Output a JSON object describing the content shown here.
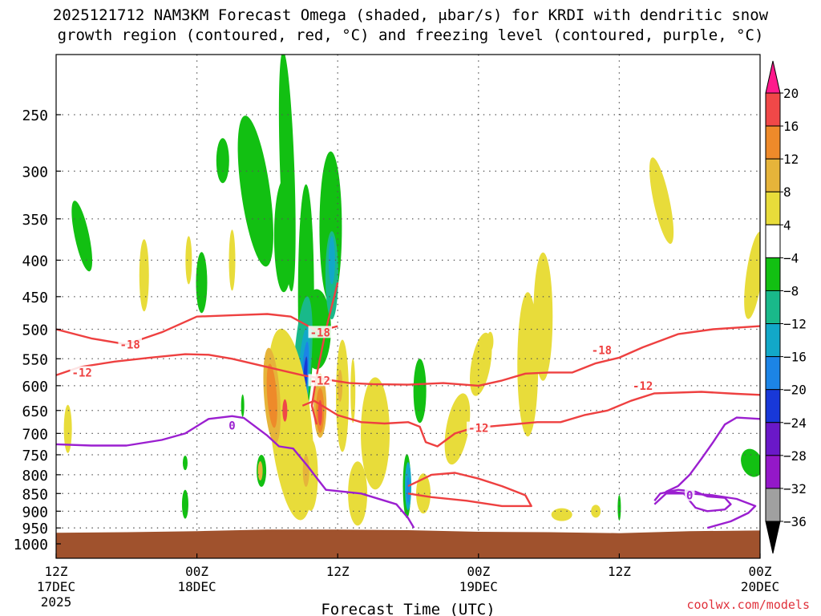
{
  "title": {
    "line1": "2025121712 NAM3KM Forecast Omega (shaded, μbar/s) for KRDI with dendritic snow",
    "line2": "growth region (contoured, red, °C) and freezing level (contoured, purple, °C)"
  },
  "credit": "coolwx.com/models",
  "chart_data": {
    "type": "time-height cross section",
    "title": "2025121712 NAM3KM Forecast Omega (shaded, μbar/s) for KRDI with dendritic snow growth region (contoured, red, °C) and freezing level (contoured, purple, °C)",
    "xlabel": "Forecast Time (UTC)",
    "ylabel": "",
    "x_range_hours": [
      0,
      60
    ],
    "x_ticks": [
      {
        "hour": 0,
        "line1": "12Z",
        "line2": "17DEC",
        "line3": "2025"
      },
      {
        "hour": 12,
        "line1": "00Z",
        "line2": "18DEC",
        "line3": ""
      },
      {
        "hour": 24,
        "line1": "12Z",
        "line2": "",
        "line3": ""
      },
      {
        "hour": 36,
        "line1": "00Z",
        "line2": "19DEC",
        "line3": ""
      },
      {
        "hour": 48,
        "line1": "12Z",
        "line2": "",
        "line3": ""
      },
      {
        "hour": 60,
        "line1": "00Z",
        "line2": "20DEC",
        "line3": ""
      }
    ],
    "y_pressure_levels": [
      250,
      300,
      350,
      400,
      450,
      500,
      550,
      600,
      650,
      700,
      750,
      800,
      850,
      900,
      950,
      1000
    ],
    "colorbar": {
      "levels": [
        20,
        16,
        12,
        8,
        4,
        -4,
        -8,
        -12,
        -16,
        -20,
        -24,
        -28,
        -32,
        -36
      ],
      "colors": [
        "#ff1a8c",
        "#f04848",
        "#ee8a2a",
        "#e6b43a",
        "#e8dc3a",
        "#ffffff",
        "#12c012",
        "#19b98a",
        "#12a8c8",
        "#1c84e6",
        "#1838d8",
        "#6a18c8",
        "#9418c8",
        "#a0a0a0",
        "#000000"
      ]
    },
    "ground_color": "#a0522d",
    "omega_features": [
      {
        "hour": 20.5,
        "p": 470,
        "value": -12
      },
      {
        "hour": 21.3,
        "p": 570,
        "value": -24
      },
      {
        "hour": 22.5,
        "p": 650,
        "value": 16
      },
      {
        "hour": 18.5,
        "p": 620,
        "value": 12
      },
      {
        "hour": 17.0,
        "p": 300,
        "value": -8
      },
      {
        "hour": 23.5,
        "p": 420,
        "value": -16
      },
      {
        "hour": 30.0,
        "p": 830,
        "value": -16
      },
      {
        "hour": 34.5,
        "p": 670,
        "value": 4
      },
      {
        "hour": 41.5,
        "p": 520,
        "value": 4
      }
    ],
    "dgz_contours": [
      {
        "label": "-18",
        "hour": 6.3,
        "p": 525
      },
      {
        "label": "-12",
        "hour": 2.2,
        "p": 575
      },
      {
        "label": "-18",
        "hour": 22.5,
        "p": 505
      },
      {
        "label": "-12",
        "hour": 22.5,
        "p": 590
      },
      {
        "label": "-12",
        "hour": 36.0,
        "p": 688
      },
      {
        "label": "-18",
        "hour": 46.5,
        "p": 535
      },
      {
        "label": "-12",
        "hour": 50.0,
        "p": 600
      }
    ],
    "freezing_level_contours": [
      {
        "label": "0",
        "hour": 15.0,
        "p": 682
      },
      {
        "label": "0",
        "hour": 54.0,
        "p": 855
      }
    ]
  }
}
